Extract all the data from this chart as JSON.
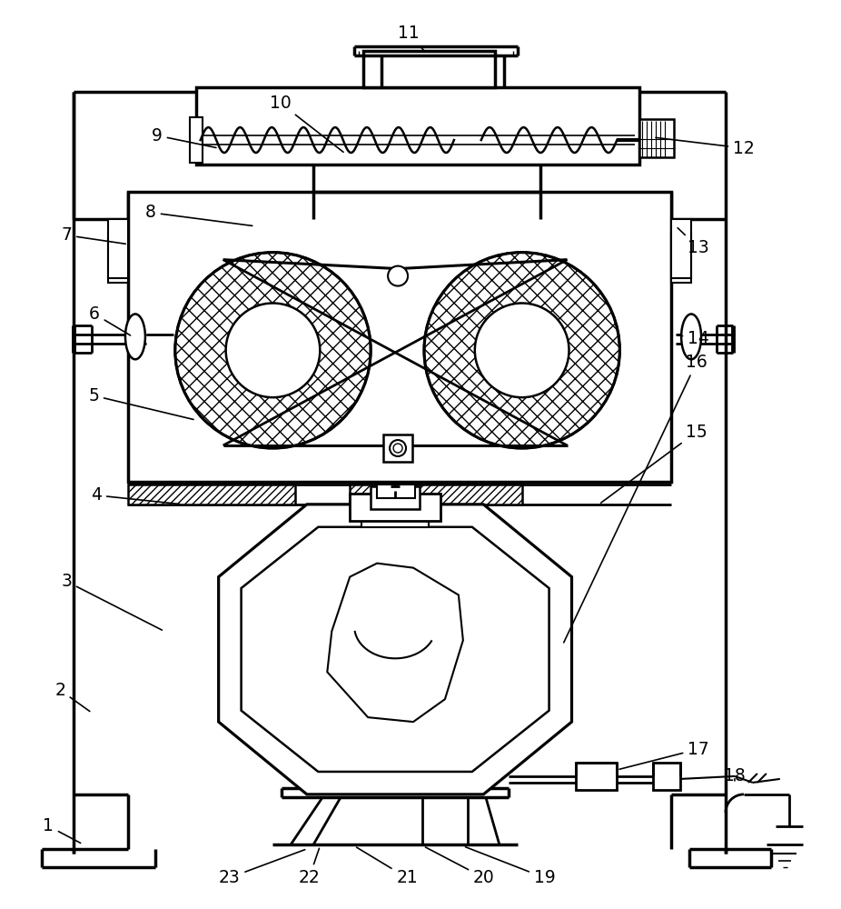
{
  "bg_color": "#ffffff",
  "line_color": "#000000",
  "lw": 1.8,
  "fig_width": 9.26,
  "fig_height": 10.0
}
